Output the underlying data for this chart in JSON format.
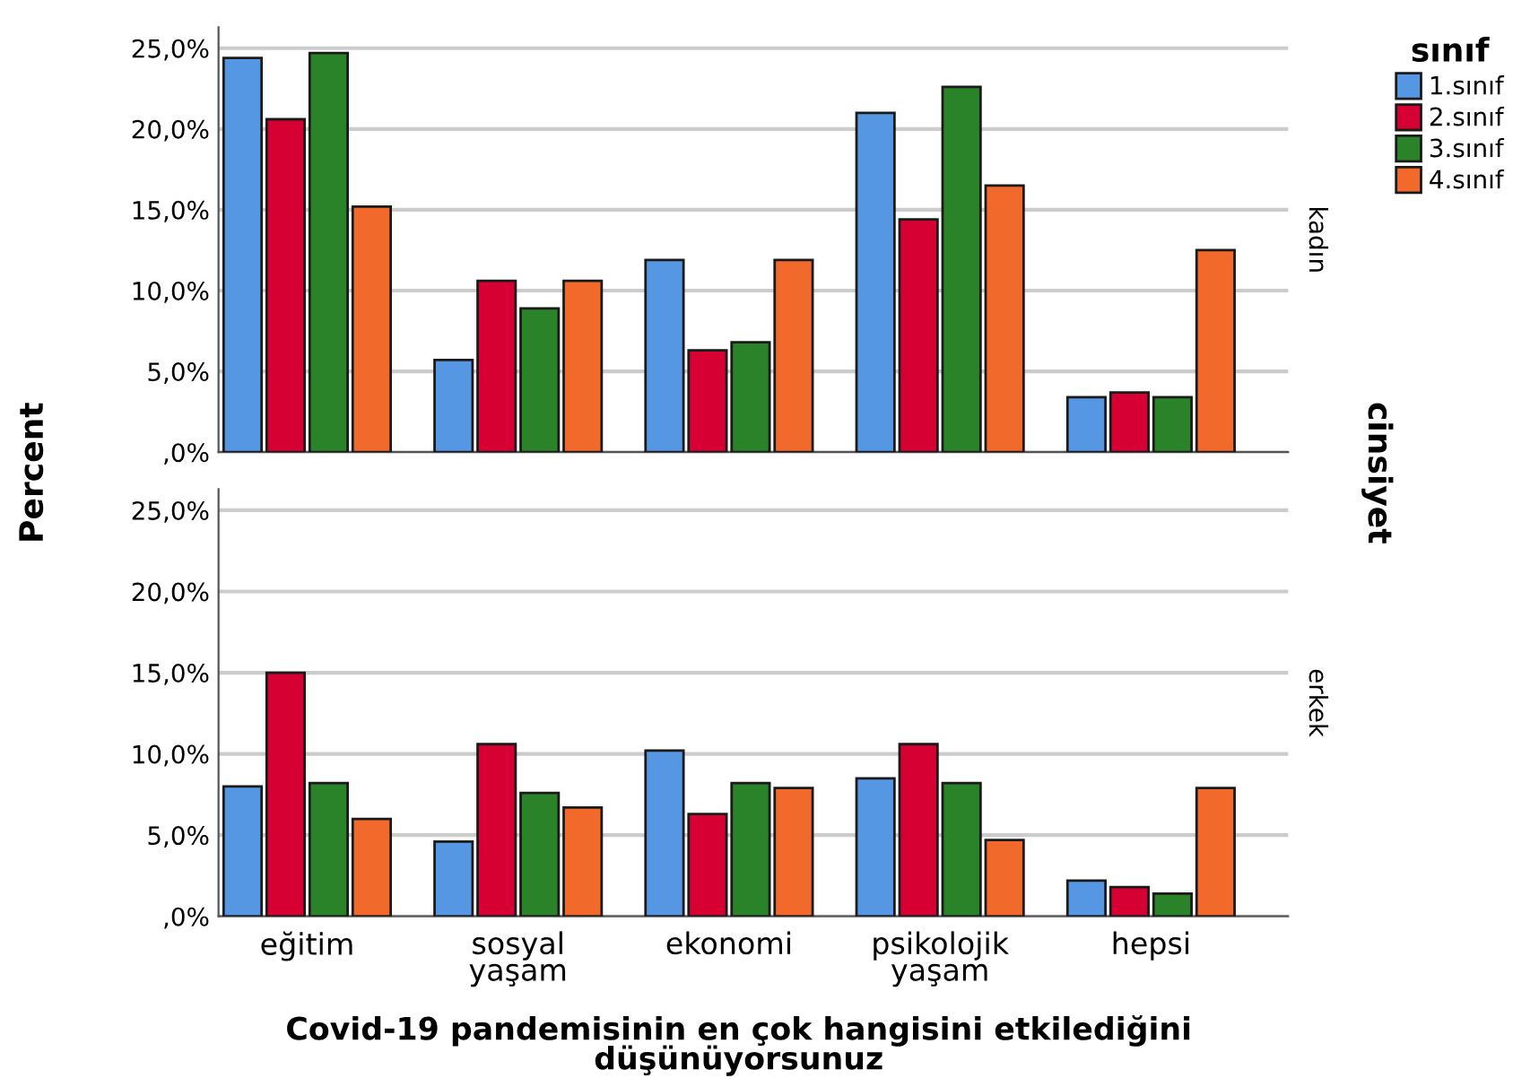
{
  "chart_data": [
    {
      "type": "bar",
      "ylabel": "Percent",
      "legend_title": "sınıf",
      "legend": "right",
      "grid": "y",
      "tick_labels": "y",
      "annotations": [
        "kadın",
        "cinsiyet"
      ],
      "categories": [
        null,
        null,
        null,
        null,
        null
      ],
      "ylim": [
        0,
        26.3
      ],
      "yticks": [
        {
          "value": 0,
          "label": ",0%"
        },
        {
          "value": 5,
          "label": "5,0%"
        },
        {
          "value": 10,
          "label": "10,0%"
        },
        {
          "value": 15,
          "label": "15,0%"
        },
        {
          "value": 20,
          "label": "20,0%"
        },
        {
          "value": 25,
          "label": "25,0%"
        }
      ],
      "series": [
        {
          "name": "1.sınıf",
          "color": "#5697e3",
          "values": [
            24.4,
            5.7,
            11.9,
            21.0,
            3.4
          ]
        },
        {
          "name": "2.sınıf",
          "color": "#d60032",
          "values": [
            20.6,
            10.6,
            6.3,
            14.4,
            3.7
          ]
        },
        {
          "name": "3.sınıf",
          "color": "#2a8229",
          "values": [
            24.7,
            8.9,
            6.8,
            22.6,
            3.4
          ]
        },
        {
          "name": "4.sınıf",
          "color": "#f26a2b",
          "values": [
            15.2,
            10.6,
            11.9,
            16.5,
            12.5
          ]
        }
      ]
    },
    {
      "type": "bar",
      "xlabel": "Covid-19 pandemisinin en çok hangisini etkilediğini düşünüyorsunuz",
      "grid": "y",
      "annotations": [
        "erkek"
      ],
      "categories": [
        "eğitim",
        "sosyal yaşam",
        "ekonomi",
        "psikolojik yaşam",
        "hepsi"
      ],
      "ylim": [
        0,
        26.3
      ],
      "yticks": [
        {
          "value": 0,
          "label": ",0%"
        },
        {
          "value": 5,
          "label": "5,0%"
        },
        {
          "value": 10,
          "label": "10,0%"
        },
        {
          "value": 15,
          "label": "15,0%"
        },
        {
          "value": 20,
          "label": "20,0%"
        },
        {
          "value": 25,
          "label": "25,0%"
        }
      ],
      "series": [
        {
          "color": "#5697e3",
          "values": [
            8.0,
            4.6,
            10.2,
            8.5,
            2.2
          ]
        },
        {
          "color": "#d60032",
          "values": [
            15.0,
            10.6,
            6.3,
            10.6,
            1.8
          ]
        },
        {
          "color": "#2a8229",
          "values": [
            8.2,
            7.6,
            8.2,
            8.2,
            1.4
          ]
        },
        {
          "color": "#f26a2b",
          "values": [
            6.0,
            6.7,
            7.9,
            4.7,
            7.9
          ]
        }
      ]
    }
  ]
}
